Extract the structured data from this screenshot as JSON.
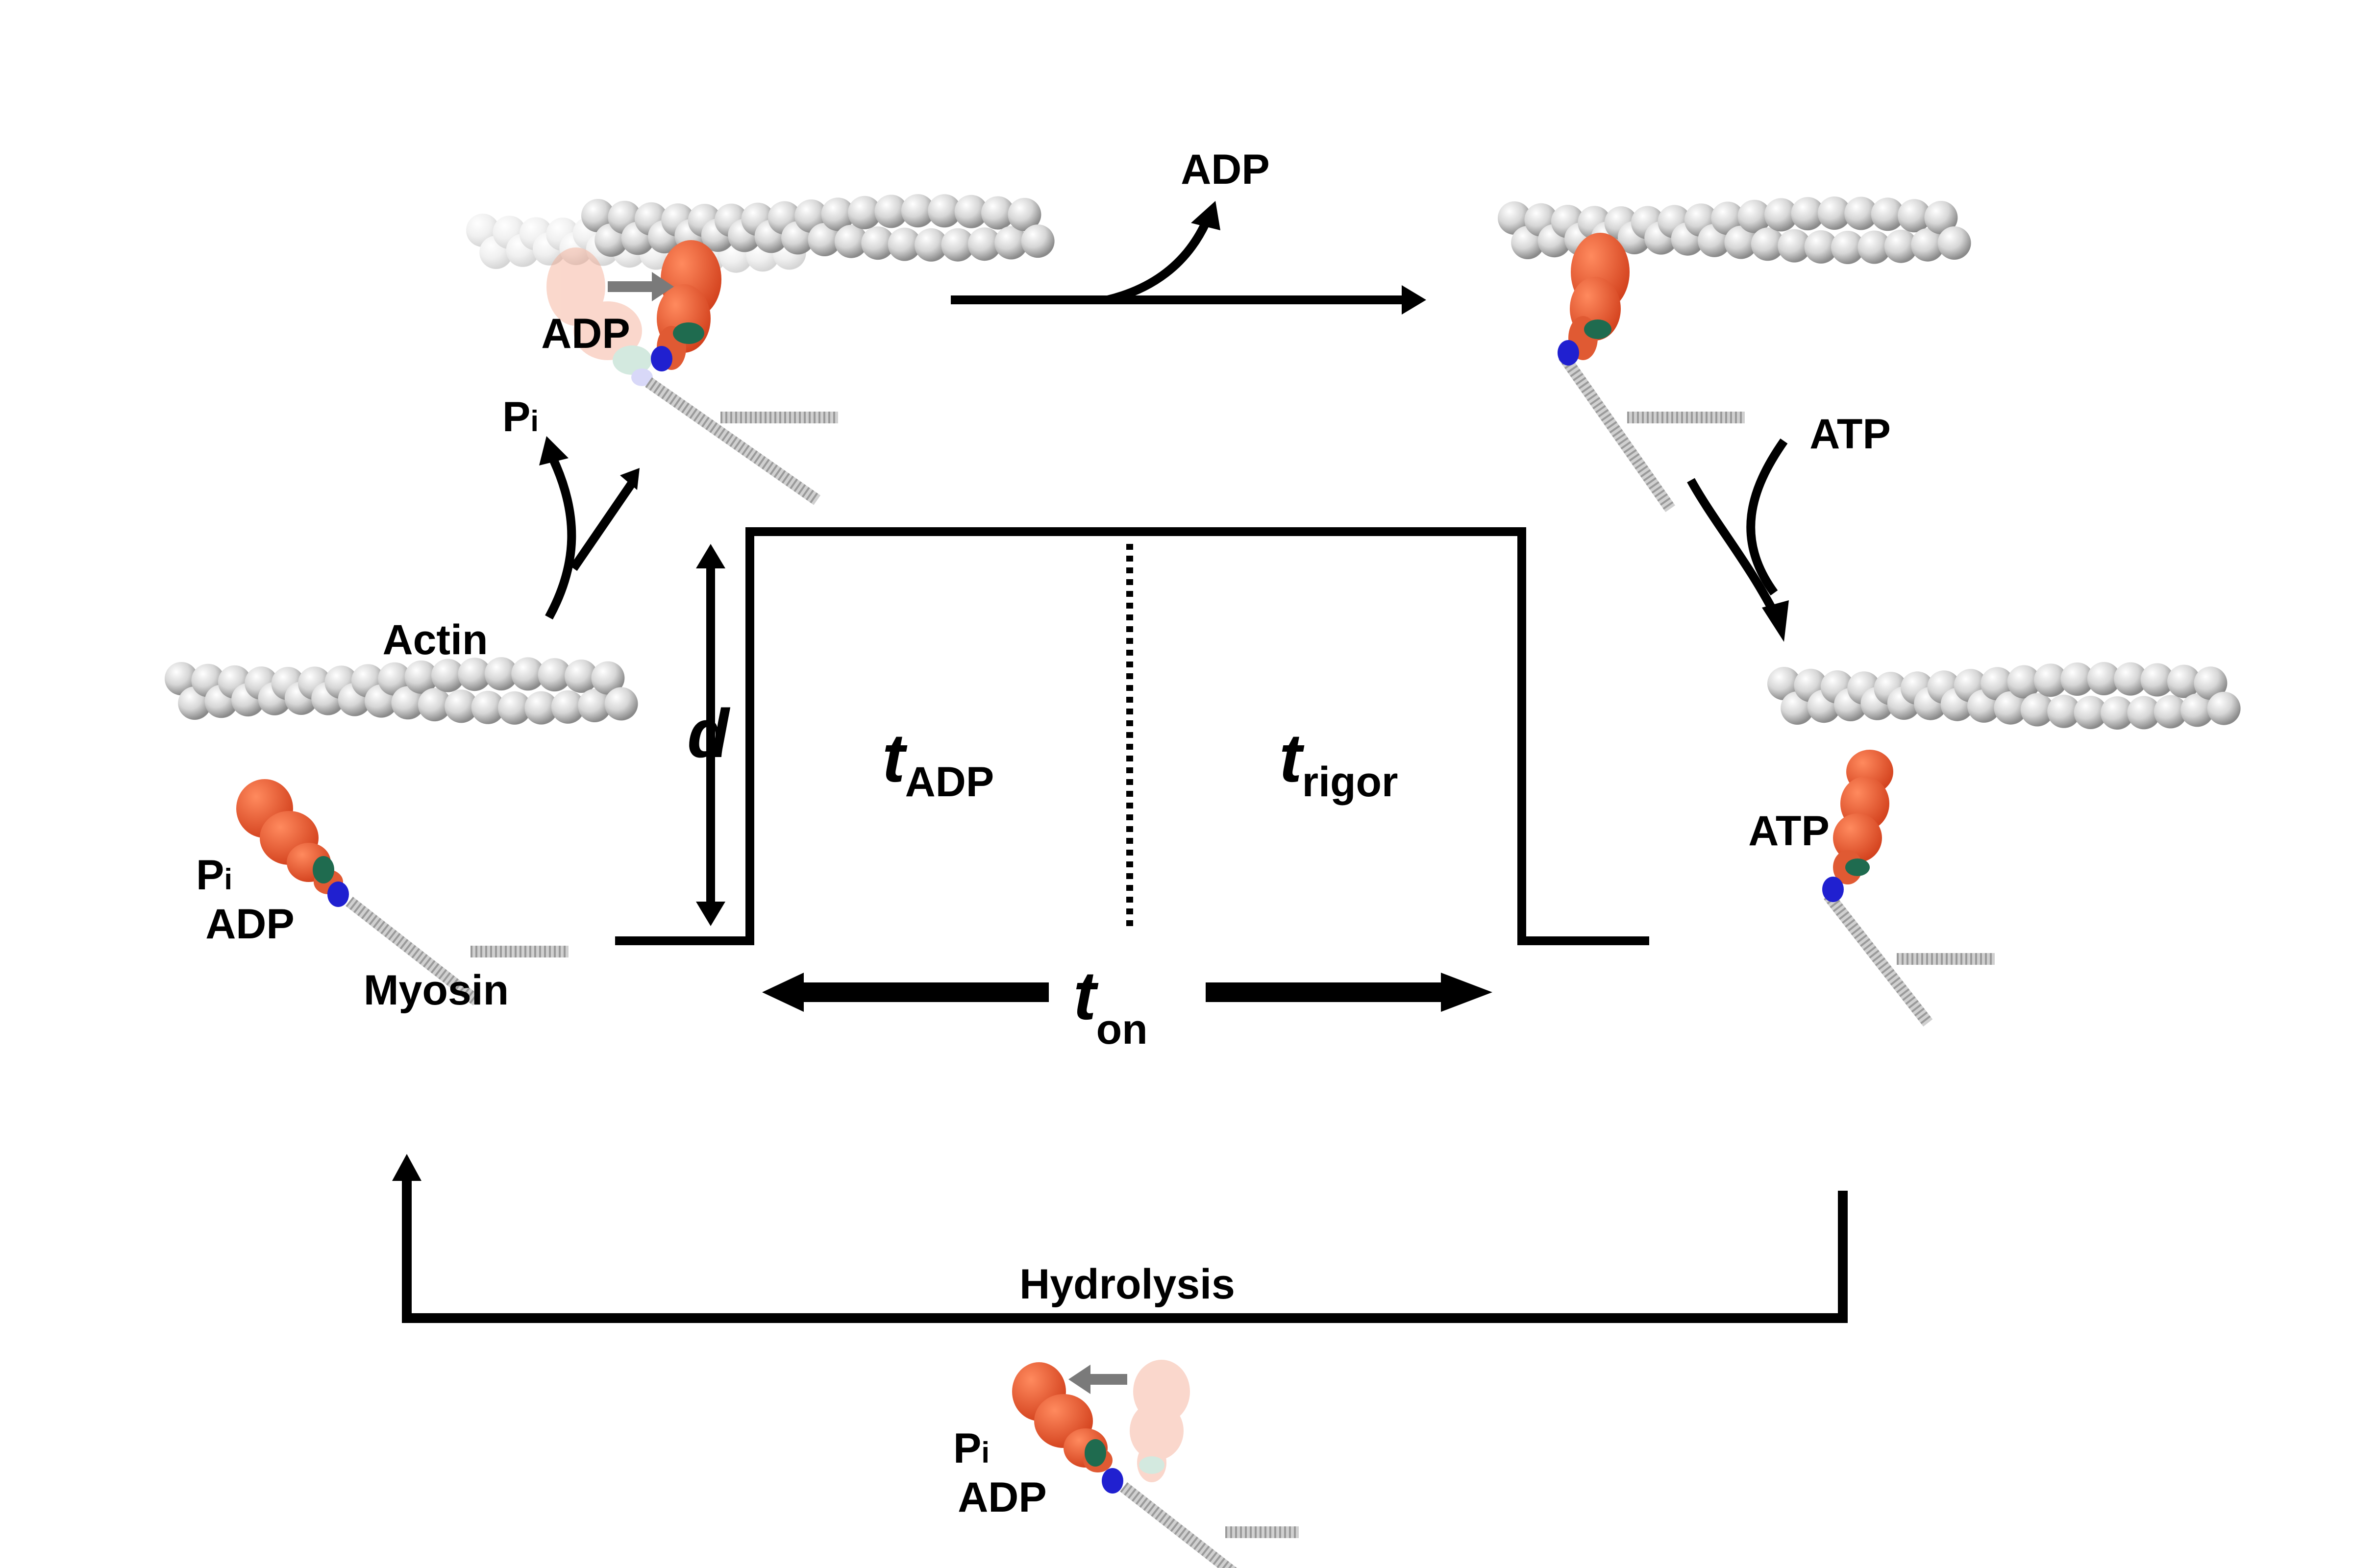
{
  "labels": {
    "adp_release": "ADP",
    "atp_binding": "ATP",
    "pi_release": "P",
    "pi_sub": "i",
    "actin": "Actin",
    "myosin": "Myosin",
    "hydrolysis": "Hydrolysis",
    "strongly_bound_adp": "ADP",
    "rigor_atp": "ATP",
    "prepower_pi": "P",
    "prepower_pi_sub": "i",
    "prepower_adp": "ADP",
    "recovery_pi": "P",
    "recovery_pi_sub": "i",
    "recovery_adp": "ADP"
  },
  "trace": {
    "d_symbol": "d",
    "t_adp_main": "t",
    "t_adp_sub": "ADP",
    "t_rigor_main": "t",
    "t_rigor_sub": "rigor",
    "t_on_main": "t",
    "t_on_sub": "on"
  },
  "colors": {
    "myosin_head": "#e8552e",
    "myosin_head_faded": "#f4b3a2",
    "light_chain": "#1f6b4f",
    "converter": "#2020d0",
    "actin_bead": "#d9d9d9",
    "lever_tail": "#bdbdbd",
    "line": "#000000",
    "motion_arrow": "#7a7a7a"
  }
}
